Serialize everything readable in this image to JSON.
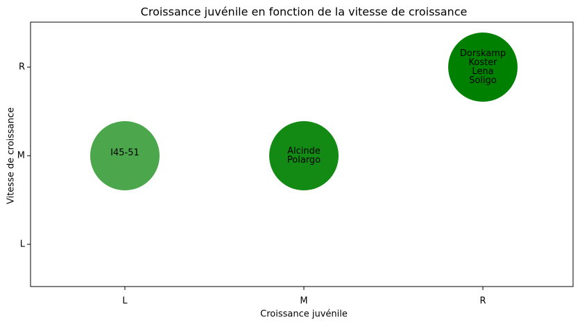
{
  "chart_data": {
    "type": "scatter",
    "title": "Croissance juvénile en fonction de la vitesse de croissance",
    "xlabel": "Croissance juvénile",
    "ylabel": "Vitesse de croissance",
    "xcategories": [
      "L",
      "M",
      "R"
    ],
    "ycategories": [
      "L",
      "M",
      "R"
    ],
    "points": [
      {
        "x": "L",
        "y": "M",
        "labels": [
          "I45-51"
        ],
        "color": "#4ca64c"
      },
      {
        "x": "M",
        "y": "M",
        "labels": [
          "Alcinde",
          "Polargo"
        ],
        "color": "#138a13"
      },
      {
        "x": "R",
        "y": "R",
        "labels": [
          "Dorskamp",
          "Koster",
          "Lena",
          "Soligo"
        ],
        "color": "#008000"
      }
    ]
  }
}
